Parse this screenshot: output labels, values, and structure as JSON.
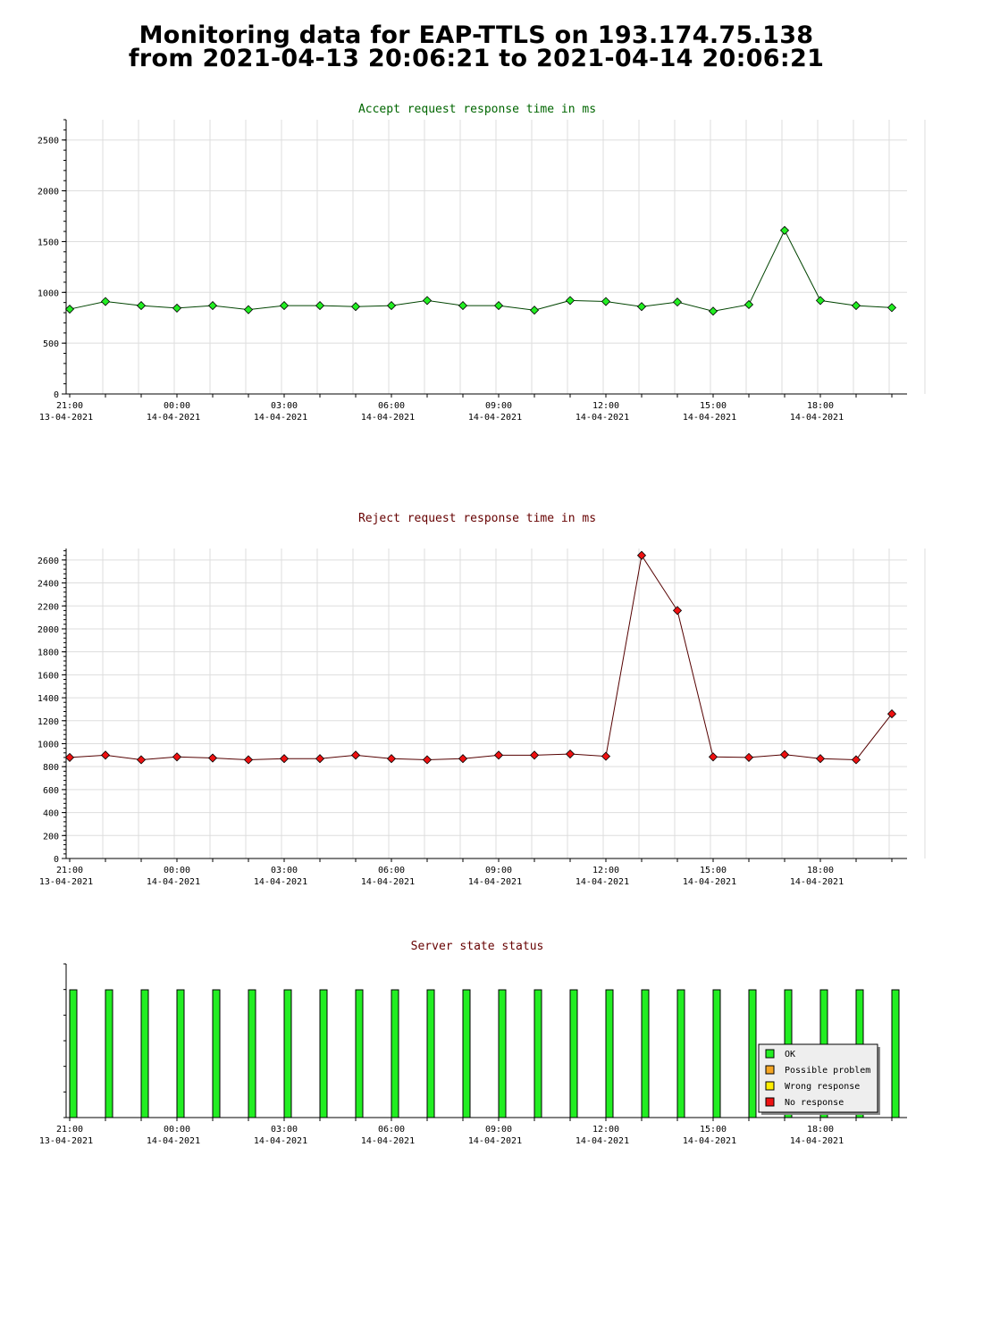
{
  "page": {
    "title_line1": "Monitoring data for EAP-TTLS on 193.174.75.138",
    "title_line2": "from 2021-04-13 20:06:21 to 2021-04-14 20:06:21"
  },
  "colors": {
    "accept_title": "#006600",
    "reject_title": "#660000",
    "status_title": "#660000",
    "accept_point": "#22ee22",
    "reject_point": "#ee1111",
    "accept_line": "#004400",
    "reject_line": "#550000",
    "ok": "#22ee22",
    "possible_problem": "#f5a623",
    "wrong_response": "#ffee00",
    "no_response": "#ee1111",
    "grid": "#dddddd"
  },
  "chart_data": [
    {
      "id": "accept",
      "type": "line",
      "title": "Accept request response time in ms",
      "ylim": [
        0,
        2700
      ],
      "yticks": [
        0,
        500,
        1000,
        1500,
        2000,
        2500
      ],
      "x_labels": [
        {
          "time": "21:00",
          "date": "13-04-2021"
        },
        {
          "time": "00:00",
          "date": "14-04-2021"
        },
        {
          "time": "03:00",
          "date": "14-04-2021"
        },
        {
          "time": "06:00",
          "date": "14-04-2021"
        },
        {
          "time": "09:00",
          "date": "14-04-2021"
        },
        {
          "time": "12:00",
          "date": "14-04-2021"
        },
        {
          "time": "15:00",
          "date": "14-04-2021"
        },
        {
          "time": "18:00",
          "date": "14-04-2021"
        }
      ],
      "grid": true,
      "values": [
        835,
        910,
        870,
        845,
        870,
        830,
        870,
        870,
        860,
        870,
        920,
        870,
        870,
        825,
        920,
        910,
        860,
        905,
        815,
        880,
        1610,
        920,
        870,
        850
      ]
    },
    {
      "id": "reject",
      "type": "line",
      "title": "Reject request response time in ms",
      "ylim": [
        0,
        2700
      ],
      "yticks": [
        0,
        200,
        400,
        600,
        800,
        1000,
        1200,
        1400,
        1600,
        1800,
        2000,
        2200,
        2400,
        2600
      ],
      "x_labels": [
        {
          "time": "21:00",
          "date": "13-04-2021"
        },
        {
          "time": "00:00",
          "date": "14-04-2021"
        },
        {
          "time": "03:00",
          "date": "14-04-2021"
        },
        {
          "time": "06:00",
          "date": "14-04-2021"
        },
        {
          "time": "09:00",
          "date": "14-04-2021"
        },
        {
          "time": "12:00",
          "date": "14-04-2021"
        },
        {
          "time": "15:00",
          "date": "14-04-2021"
        },
        {
          "time": "18:00",
          "date": "14-04-2021"
        }
      ],
      "grid": true,
      "values": [
        880,
        900,
        860,
        885,
        875,
        860,
        870,
        870,
        900,
        870,
        860,
        870,
        900,
        900,
        910,
        890,
        2640,
        2160,
        885,
        880,
        905,
        870,
        860,
        1260
      ]
    },
    {
      "id": "status",
      "type": "bar",
      "title": "Server state status",
      "x_labels": [
        {
          "time": "21:00",
          "date": "13-04-2021"
        },
        {
          "time": "00:00",
          "date": "14-04-2021"
        },
        {
          "time": "03:00",
          "date": "14-04-2021"
        },
        {
          "time": "06:00",
          "date": "14-04-2021"
        },
        {
          "time": "09:00",
          "date": "14-04-2021"
        },
        {
          "time": "12:00",
          "date": "14-04-2021"
        },
        {
          "time": "15:00",
          "date": "14-04-2021"
        },
        {
          "time": "18:00",
          "date": "14-04-2021"
        }
      ],
      "grid": false,
      "states": [
        "OK",
        "OK",
        "OK",
        "OK",
        "OK",
        "OK",
        "OK",
        "OK",
        "OK",
        "OK",
        "OK",
        "OK",
        "OK",
        "OK",
        "OK",
        "OK",
        "OK",
        "OK",
        "OK",
        "OK",
        "OK",
        "OK",
        "OK",
        "OK"
      ],
      "legend": [
        {
          "key": "ok",
          "label": "OK"
        },
        {
          "key": "possible_problem",
          "label": "Possible problem"
        },
        {
          "key": "wrong_response",
          "label": "Wrong response"
        },
        {
          "key": "no_response",
          "label": "No response"
        }
      ],
      "legend_position": "bottom-right"
    }
  ]
}
